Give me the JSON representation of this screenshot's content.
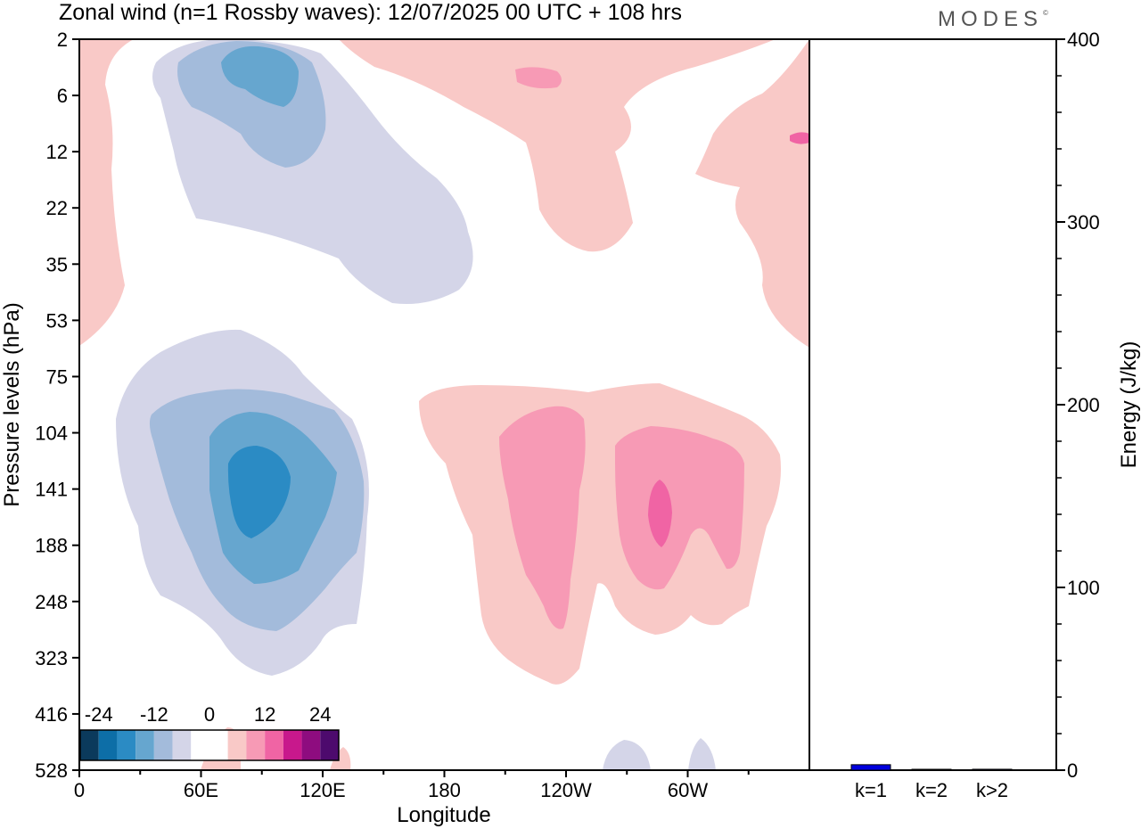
{
  "chart_data": [
    {
      "type": "heatmap",
      "title": "Zonal wind (n=1 Rossby waves):  12/07/2025  00 UTC  + 108 hrs",
      "xlabel": "Longitude",
      "ylabel": "Pressure levels (hPa)",
      "x_tick_labels": [
        "0",
        "60E",
        "120E",
        "180",
        "120W",
        "60W"
      ],
      "y_tick_labels": [
        "2",
        "6",
        "12",
        "22",
        "35",
        "53",
        "75",
        "104",
        "141",
        "188",
        "248",
        "323",
        "416",
        "528"
      ],
      "colorbar": {
        "tick_labels": [
          "-24",
          "-12",
          "0",
          "12",
          "24"
        ],
        "colors": [
          "#0b3a5c",
          "#0d6ea7",
          "#2b8bc4",
          "#66a6cf",
          "#a3bbdb",
          "#d4d5e8",
          "#ffffff",
          "#ffffff",
          "#f9c9c7",
          "#f79ab5",
          "#f064a4",
          "#c8188c",
          "#8e0c7f",
          "#4d0a6d"
        ]
      },
      "features": [
        {
          "sign": "negative",
          "center_longitude": 80,
          "center_level_hPa": 6,
          "min_value": -12
        },
        {
          "sign": "negative",
          "center_longitude": 85,
          "center_level_hPa": 141,
          "min_value": -21
        },
        {
          "sign": "positive",
          "center_longitude": 245,
          "center_level_hPa": 141,
          "max_value": 10
        },
        {
          "sign": "positive",
          "center_longitude": 300,
          "center_level_hPa": 141,
          "max_value": 13
        },
        {
          "sign": "positive",
          "center_longitude": 220,
          "center_level_hPa": 6,
          "max_value": 5
        }
      ]
    },
    {
      "type": "bar",
      "categories": [
        "k=1",
        "k=2",
        "k>2"
      ],
      "values": [
        3,
        0.3,
        0.5
      ],
      "ylabel": "Energy (J/kg)",
      "ylim": [
        0,
        400
      ],
      "y_tick_labels": [
        "0",
        "100",
        "200",
        "300",
        "400"
      ],
      "bar_color": "#0000dd"
    }
  ],
  "brand": "MODES",
  "brand_mark": "©",
  "colors": {
    "neg1": "#d4d5e8",
    "neg2": "#a3bbdb",
    "neg3": "#66a6cf",
    "neg4": "#2b8bc4",
    "pos1": "#f9c9c7",
    "pos2": "#f79ab5",
    "pos3": "#f064a4"
  }
}
